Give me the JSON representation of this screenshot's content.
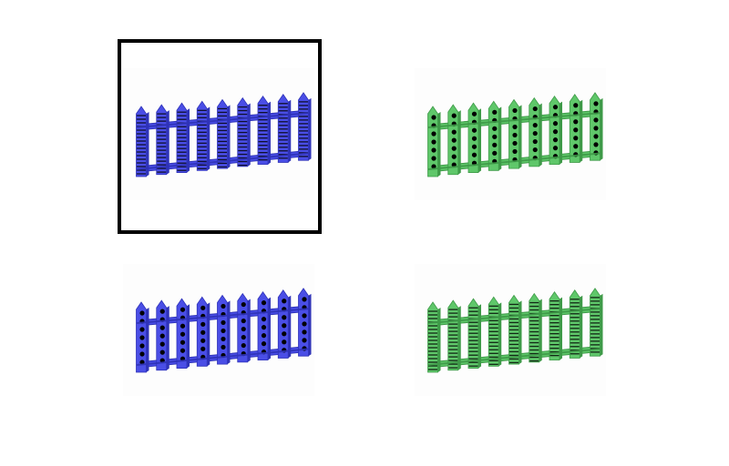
{
  "selection": {
    "selected_index": 0
  },
  "tiles": [
    {
      "id": "tile-1",
      "name": "fence-option-1",
      "color": "#4a4ee6",
      "shade": "#2f33b8",
      "pattern": "stripes"
    },
    {
      "id": "tile-2",
      "name": "fence-option-2",
      "color": "#5fc76a",
      "shade": "#3e9a48",
      "pattern": "dots"
    },
    {
      "id": "tile-3",
      "name": "fence-option-3",
      "color": "#4a4ee6",
      "shade": "#2f33b8",
      "pattern": "dots"
    },
    {
      "id": "tile-4",
      "name": "fence-option-4",
      "color": "#5fc76a",
      "shade": "#3e9a48",
      "pattern": "stripes"
    }
  ],
  "fence": {
    "picket_count": 9
  }
}
